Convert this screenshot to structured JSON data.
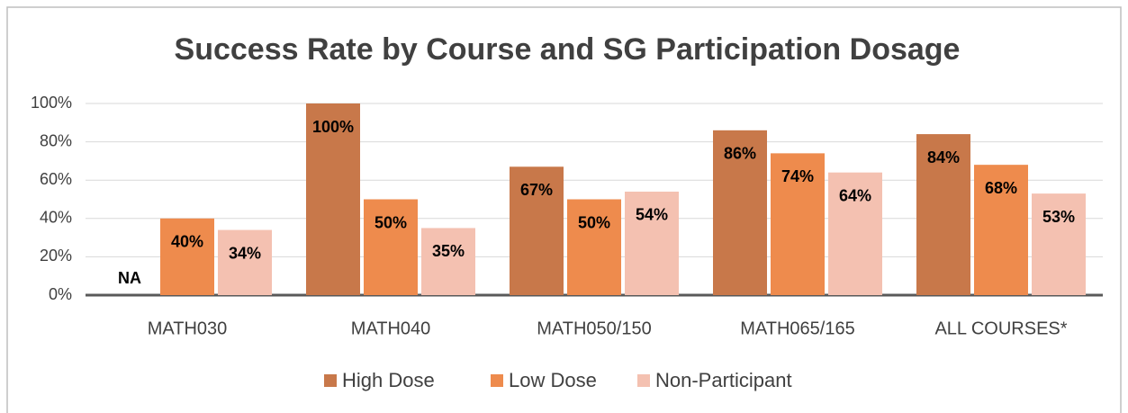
{
  "chart_data": {
    "type": "bar",
    "title": "Success Rate by Course and SG Participation Dosage",
    "categories": [
      "MATH030",
      "MATH040",
      "MATH050/150",
      "MATH065/165",
      "ALL COURSES*"
    ],
    "series": [
      {
        "name": "High Dose",
        "color": "#c8784a",
        "values": [
          null,
          100,
          67,
          86,
          84
        ],
        "value_labels": [
          "NA",
          "100%",
          "67%",
          "86%",
          "84%"
        ]
      },
      {
        "name": "Low Dose",
        "color": "#ee8b4d",
        "values": [
          40,
          50,
          50,
          74,
          68
        ],
        "value_labels": [
          "40%",
          "50%",
          "50%",
          "74%",
          "68%"
        ]
      },
      {
        "name": "Non-Participant",
        "color": "#f4c1b1",
        "values": [
          34,
          35,
          54,
          64,
          53
        ],
        "value_labels": [
          "34%",
          "35%",
          "54%",
          "64%",
          "53%"
        ]
      }
    ],
    "ylim": [
      0,
      100
    ],
    "yticks": [
      {
        "value": 0,
        "label": "0%"
      },
      {
        "value": 20,
        "label": "20%"
      },
      {
        "value": 40,
        "label": "40%"
      },
      {
        "value": 60,
        "label": "60%"
      },
      {
        "value": 80,
        "label": "80%"
      },
      {
        "value": 100,
        "label": "100%"
      }
    ],
    "grid": true,
    "legend": "bottom"
  }
}
